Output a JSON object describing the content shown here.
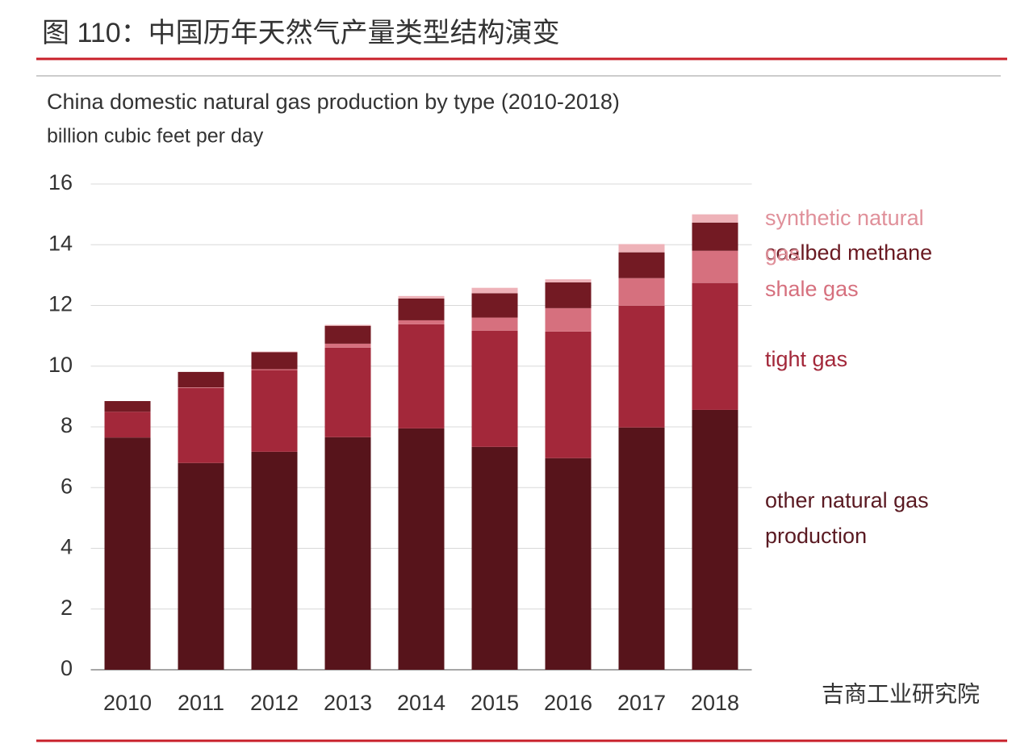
{
  "page": {
    "heading": "图 110：中国历年天然气产量类型结构演变",
    "watermark": "吉商工业研究院"
  },
  "chart_data": {
    "type": "stacked-bar",
    "title": "China domestic natural gas production by type (2010-2018)",
    "subtitle": "billion cubic feet per day",
    "categories": [
      "2010",
      "2011",
      "2012",
      "2013",
      "2014",
      "2015",
      "2016",
      "2017",
      "2018"
    ],
    "series": [
      {
        "name": "other natural gas production",
        "color": "#57141b",
        "values": [
          7.65,
          6.81,
          7.18,
          7.66,
          7.95,
          7.34,
          6.97,
          7.98,
          8.56
        ]
      },
      {
        "name": "tight gas",
        "color": "#a3283a",
        "values": [
          0.85,
          2.47,
          2.69,
          2.95,
          3.43,
          3.83,
          4.17,
          4.01,
          4.18
        ]
      },
      {
        "name": "shale gas",
        "color": "#d6707e",
        "values": [
          0,
          0.02,
          0.03,
          0.13,
          0.13,
          0.43,
          0.77,
          0.91,
          1.06
        ]
      },
      {
        "name": "coalbed methane",
        "color": "#731a23",
        "values": [
          0.35,
          0.51,
          0.56,
          0.59,
          0.72,
          0.8,
          0.85,
          0.85,
          0.93
        ]
      },
      {
        "name": "synthetic natural gas",
        "color": "#eeb2b8",
        "values": [
          0,
          0,
          0.02,
          0.03,
          0.08,
          0.18,
          0.1,
          0.27,
          0.27
        ]
      }
    ],
    "ylim": [
      0,
      16
    ],
    "yticks": [
      0,
      2,
      4,
      6,
      8,
      10,
      12,
      14,
      16
    ],
    "grid": true
  }
}
